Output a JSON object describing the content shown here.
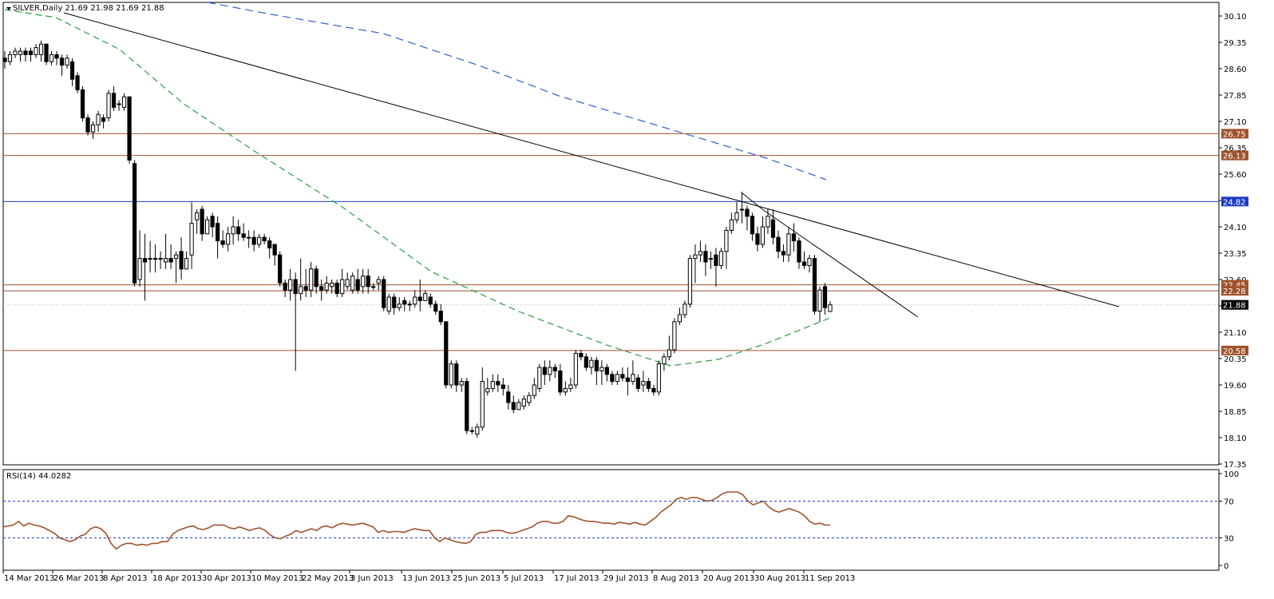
{
  "chart_data": [
    {
      "type": "candlestick",
      "symbol": "SILVER",
      "timeframe": "Daily",
      "header_label": "SILVER,Daily  21.69 21.98 21.69 21.88",
      "last_ohlc": {
        "open": 21.69,
        "high": 21.98,
        "low": 21.69,
        "close": 21.88
      },
      "ylim": [
        17.35,
        30.1
      ],
      "yticks": [
        "30.10",
        "29.35",
        "28.60",
        "27.85",
        "27.10",
        "26.35",
        "25.60",
        "24.85",
        "24.10",
        "23.35",
        "22.60",
        "21.85",
        "21.10",
        "20.35",
        "19.60",
        "18.85",
        "18.10",
        "17.35"
      ],
      "xticks": [
        "14 Mar 2013",
        "26 Mar 2013",
        "8 Apr 2013",
        "18 Apr 2013",
        "30 Apr 2013",
        "10 May 2013",
        "22 May 2013",
        "3 Jun 2013",
        "13 Jun 2013",
        "25 Jun 2013",
        "5 Jul 2013",
        "17 Jul 2013",
        "29 Jul 2013",
        "8 Aug 2013",
        "20 Aug 2013",
        "30 Aug 2013",
        "11 Sep 2013"
      ],
      "candles": [
        [
          28.9,
          28.8,
          29.1,
          28.6
        ],
        [
          28.8,
          29.0,
          29.1,
          28.7
        ],
        [
          29.0,
          29.1,
          29.2,
          28.9
        ],
        [
          29.0,
          29.1,
          29.2,
          28.8
        ],
        [
          29.1,
          29.0,
          29.2,
          28.8
        ],
        [
          29.1,
          29.0,
          29.2,
          28.8
        ],
        [
          29.0,
          29.2,
          29.3,
          28.9
        ],
        [
          29.0,
          29.3,
          29.4,
          28.8
        ],
        [
          29.3,
          28.8,
          29.3,
          28.7
        ],
        [
          28.8,
          29.0,
          29.1,
          28.7
        ],
        [
          29.0,
          28.9,
          29.1,
          28.7
        ],
        [
          28.9,
          28.7,
          29.0,
          28.4
        ],
        [
          28.7,
          28.9,
          29.0,
          28.6
        ],
        [
          28.8,
          28.3,
          28.9,
          28.1
        ],
        [
          28.4,
          28.0,
          28.5,
          27.9
        ],
        [
          28.0,
          27.2,
          28.1,
          27.1
        ],
        [
          27.2,
          26.8,
          27.3,
          26.7
        ],
        [
          26.8,
          27.0,
          27.1,
          26.6
        ],
        [
          27.0,
          27.3,
          27.4,
          26.8
        ],
        [
          27.2,
          27.1,
          27.3,
          26.9
        ],
        [
          27.2,
          27.9,
          28.0,
          27.1
        ],
        [
          27.9,
          27.5,
          28.1,
          27.4
        ],
        [
          27.6,
          27.6,
          27.7,
          27.4
        ],
        [
          27.5,
          27.8,
          27.9,
          27.4
        ],
        [
          27.8,
          26.0,
          27.8,
          25.9
        ],
        [
          25.9,
          22.5,
          26.0,
          22.4
        ],
        [
          22.6,
          23.2,
          24.0,
          22.4
        ],
        [
          23.2,
          23.1,
          23.9,
          22.0
        ],
        [
          23.2,
          23.2,
          23.7,
          22.8
        ],
        [
          23.2,
          23.2,
          23.6,
          22.8
        ],
        [
          23.2,
          23.2,
          23.4,
          22.9
        ],
        [
          23.1,
          23.2,
          23.9,
          22.9
        ],
        [
          23.2,
          23.1,
          23.6,
          22.9
        ],
        [
          23.2,
          23.3,
          23.4,
          22.5
        ],
        [
          23.4,
          22.9,
          23.8,
          22.6
        ],
        [
          22.9,
          23.2,
          23.4,
          22.9
        ],
        [
          23.3,
          24.2,
          24.8,
          22.9
        ],
        [
          24.3,
          24.5,
          24.6,
          23.9
        ],
        [
          24.6,
          23.9,
          24.7,
          23.7
        ],
        [
          23.9,
          24.3,
          24.4,
          24.0
        ],
        [
          24.4,
          24.1,
          24.5,
          23.8
        ],
        [
          24.2,
          23.7,
          24.4,
          23.2
        ],
        [
          23.7,
          23.6,
          24.0,
          23.5
        ],
        [
          23.6,
          23.9,
          24.1,
          23.4
        ],
        [
          23.9,
          24.1,
          24.4,
          23.6
        ],
        [
          24.1,
          23.9,
          24.3,
          23.7
        ],
        [
          23.9,
          23.8,
          24.2,
          23.7
        ],
        [
          23.8,
          23.8,
          24.0,
          23.5
        ],
        [
          23.8,
          23.6,
          24.0,
          23.4
        ],
        [
          23.6,
          23.8,
          23.9,
          23.5
        ],
        [
          23.8,
          23.7,
          23.9,
          23.6
        ],
        [
          23.7,
          23.5,
          23.8,
          23.2
        ],
        [
          23.6,
          23.3,
          23.5,
          23.0
        ],
        [
          23.3,
          22.5,
          23.4,
          22.4
        ],
        [
          22.5,
          22.3,
          22.6,
          22.1
        ],
        [
          22.3,
          22.6,
          22.9,
          22.0
        ],
        [
          22.6,
          22.2,
          22.8,
          20.0
        ],
        [
          22.2,
          22.4,
          23.2,
          22.0
        ],
        [
          22.4,
          22.3,
          22.9,
          22.1
        ],
        [
          22.3,
          22.9,
          23.1,
          22.1
        ],
        [
          22.9,
          22.4,
          23.0,
          22.2
        ],
        [
          22.4,
          22.3,
          22.6,
          22.0
        ],
        [
          22.3,
          22.5,
          22.7,
          22.2
        ],
        [
          22.4,
          22.5,
          22.6,
          22.2
        ],
        [
          22.5,
          22.2,
          22.6,
          22.1
        ],
        [
          22.2,
          22.6,
          22.9,
          22.1
        ],
        [
          22.4,
          22.6,
          22.8,
          22.3
        ],
        [
          22.3,
          22.7,
          22.8,
          22.2
        ],
        [
          22.6,
          22.3,
          22.9,
          22.2
        ],
        [
          22.4,
          22.7,
          22.9,
          22.2
        ],
        [
          22.7,
          22.4,
          22.9,
          22.2
        ],
        [
          22.4,
          22.4,
          22.5,
          22.3
        ],
        [
          22.5,
          22.6,
          22.7,
          22.3
        ],
        [
          22.6,
          21.8,
          22.7,
          21.7
        ],
        [
          21.7,
          22.1,
          22.2,
          21.6
        ],
        [
          22.1,
          21.8,
          22.2,
          21.6
        ],
        [
          21.8,
          21.9,
          22.1,
          21.7
        ],
        [
          22.0,
          21.9,
          22.1,
          21.7
        ],
        [
          21.9,
          21.9,
          22.0,
          21.7
        ],
        [
          21.9,
          22.1,
          22.3,
          21.8
        ],
        [
          22.1,
          22.0,
          22.6,
          21.7
        ],
        [
          22.0,
          22.2,
          22.3,
          22.0
        ],
        [
          22.1,
          21.9,
          22.2,
          21.8
        ],
        [
          21.9,
          21.7,
          22.0,
          21.6
        ],
        [
          21.7,
          21.4,
          21.9,
          21.3
        ],
        [
          21.4,
          19.6,
          21.4,
          19.5
        ],
        [
          19.6,
          20.2,
          20.3,
          19.5
        ],
        [
          20.2,
          19.6,
          20.3,
          19.4
        ],
        [
          19.6,
          19.7,
          19.8,
          19.4
        ],
        [
          19.7,
          18.3,
          19.8,
          18.2
        ],
        [
          18.3,
          18.3,
          18.4,
          18.2
        ],
        [
          18.2,
          18.4,
          18.5,
          18.1
        ],
        [
          18.4,
          19.7,
          20.1,
          18.3
        ],
        [
          19.4,
          19.5,
          19.8,
          19.3
        ],
        [
          19.5,
          19.7,
          19.9,
          19.4
        ],
        [
          19.7,
          19.6,
          19.9,
          19.4
        ],
        [
          19.6,
          19.5,
          19.8,
          19.3
        ],
        [
          19.4,
          19.1,
          19.6,
          18.9
        ],
        [
          19.1,
          18.9,
          19.3,
          18.8
        ],
        [
          18.9,
          19.1,
          19.2,
          18.9
        ],
        [
          19.0,
          19.2,
          19.3,
          18.9
        ],
        [
          19.1,
          19.3,
          19.4,
          19.0
        ],
        [
          19.3,
          19.6,
          19.8,
          19.2
        ],
        [
          19.5,
          20.1,
          20.2,
          19.4
        ],
        [
          20.1,
          19.9,
          20.3,
          19.6
        ],
        [
          19.9,
          20.1,
          20.3,
          19.7
        ],
        [
          20.1,
          20.0,
          20.2,
          19.8
        ],
        [
          20.0,
          19.4,
          20.2,
          19.3
        ],
        [
          19.4,
          19.5,
          19.7,
          19.3
        ],
        [
          19.5,
          19.6,
          19.8,
          19.4
        ],
        [
          19.6,
          20.5,
          20.6,
          19.5
        ],
        [
          20.5,
          20.4,
          20.6,
          20.3
        ],
        [
          20.4,
          20.1,
          20.5,
          20.0
        ],
        [
          20.1,
          20.3,
          20.4,
          19.9
        ],
        [
          20.3,
          20.0,
          20.4,
          19.6
        ],
        [
          20.0,
          20.1,
          20.3,
          19.6
        ],
        [
          20.1,
          19.9,
          20.2,
          19.7
        ],
        [
          19.9,
          19.7,
          20.0,
          19.6
        ],
        [
          19.7,
          19.9,
          20.0,
          19.6
        ],
        [
          19.9,
          19.8,
          20.1,
          19.7
        ],
        [
          19.8,
          19.7,
          20.1,
          19.3
        ],
        [
          19.7,
          19.9,
          20.3,
          19.6
        ],
        [
          19.8,
          19.5,
          19.9,
          19.4
        ],
        [
          19.6,
          19.7,
          20.0,
          19.4
        ],
        [
          19.7,
          19.5,
          19.8,
          19.4
        ],
        [
          19.5,
          19.4,
          19.6,
          19.3
        ],
        [
          19.4,
          20.2,
          20.3,
          19.3
        ],
        [
          20.2,
          20.4,
          20.5,
          20.0
        ],
        [
          20.4,
          20.6,
          21.0,
          20.3
        ],
        [
          20.6,
          21.4,
          21.5,
          20.5
        ],
        [
          21.4,
          21.6,
          21.8,
          21.3
        ],
        [
          21.6,
          21.9,
          22.0,
          21.5
        ],
        [
          21.9,
          23.2,
          23.3,
          21.8
        ],
        [
          23.2,
          23.3,
          23.6,
          22.5
        ],
        [
          23.3,
          23.4,
          23.7,
          23.1
        ],
        [
          23.4,
          23.1,
          23.6,
          22.7
        ],
        [
          23.2,
          23.2,
          23.4,
          22.9
        ],
        [
          23.3,
          23.0,
          23.5,
          22.4
        ],
        [
          23.0,
          23.4,
          23.5,
          22.9
        ],
        [
          23.4,
          24.0,
          24.1,
          22.9
        ],
        [
          24.0,
          24.3,
          24.5,
          23.9
        ],
        [
          24.3,
          24.5,
          24.8,
          24.2
        ],
        [
          24.6,
          24.6,
          25.1,
          24.2
        ],
        [
          24.6,
          24.4,
          24.7,
          24.0
        ],
        [
          24.4,
          23.9,
          24.5,
          23.7
        ],
        [
          23.9,
          23.6,
          24.1,
          23.4
        ],
        [
          23.6,
          24.1,
          24.4,
          23.5
        ],
        [
          24.1,
          24.4,
          24.6,
          23.9
        ],
        [
          24.3,
          23.8,
          24.6,
          23.6
        ],
        [
          23.8,
          23.4,
          24.0,
          23.2
        ],
        [
          23.4,
          23.3,
          23.6,
          23.1
        ],
        [
          23.3,
          23.9,
          24.1,
          23.1
        ],
        [
          23.9,
          23.7,
          24.2,
          23.4
        ],
        [
          23.7,
          23.1,
          23.8,
          22.9
        ],
        [
          23.1,
          23.0,
          23.4,
          22.9
        ],
        [
          23.0,
          23.2,
          23.3,
          22.8
        ],
        [
          23.2,
          21.7,
          23.3,
          21.6
        ],
        [
          21.7,
          22.3,
          22.4,
          21.4
        ],
        [
          22.4,
          21.8,
          22.5,
          21.6
        ],
        [
          21.69,
          21.88,
          21.98,
          21.69
        ]
      ],
      "overlays": {
        "sma_dashed_green": [
          30.1,
          29.5,
          28.3,
          23.5,
          22.5,
          20.6,
          20.5,
          21.0
        ],
        "sma_dashed_blue": [
          30.1,
          28.6,
          25.6
        ],
        "trendline_major": {
          "from": [
            26.3,
            30.1
          ],
          "to": [
            21.85,
            29.9
          ]
        },
        "trendline_minor": {
          "from": [
            24.8,
            0
          ],
          "to": [
            21.2,
            0
          ]
        }
      },
      "horizontal_levels": [
        {
          "value": 26.75,
          "label": "26.75",
          "color": "#a0522d",
          "tag": "brown"
        },
        {
          "value": 26.13,
          "label": "26.13",
          "color": "#a0522d",
          "tag": "brown"
        },
        {
          "value": 24.82,
          "label": "24.82",
          "color": "#1e3cc8",
          "tag": "blue"
        },
        {
          "value": 22.45,
          "label": "22.45",
          "color": "#a0522d",
          "tag": "brown"
        },
        {
          "value": 22.28,
          "label": "22.28",
          "color": "#a0522d",
          "tag": "brown"
        },
        {
          "value": 20.58,
          "label": "20.58",
          "color": "#a0522d",
          "tag": "brown"
        }
      ],
      "current_price": {
        "value": 21.88,
        "label": "21.88"
      }
    },
    {
      "type": "line",
      "indicator_label": "RSI(14) 44.0282",
      "ylim": [
        0,
        100
      ],
      "yticks": [
        "100",
        "70",
        "30",
        "0"
      ],
      "levels": [
        70,
        30
      ],
      "series": [
        {
          "name": "RSI(14)",
          "color": "#a0522d",
          "values": [
            42,
            43,
            44,
            48,
            43,
            46,
            44,
            43,
            41,
            38,
            35,
            30,
            28,
            26,
            28,
            32,
            34,
            40,
            42,
            40,
            35,
            24,
            18,
            22,
            24,
            24,
            22,
            23,
            22,
            24,
            24,
            26,
            26,
            34,
            38,
            40,
            42,
            43,
            40,
            39,
            41,
            44,
            44,
            44,
            41,
            40,
            42,
            40,
            38,
            40,
            41,
            38,
            33,
            30,
            29,
            32,
            34,
            38,
            36,
            38,
            40,
            38,
            42,
            43,
            41,
            44,
            46,
            45,
            44,
            45,
            46,
            44,
            42,
            36,
            38,
            36,
            37,
            37,
            36,
            38,
            40,
            39,
            38,
            38,
            30,
            26,
            30,
            28,
            26,
            25,
            24,
            26,
            34,
            36,
            36,
            38,
            38,
            38,
            36,
            35,
            36,
            38,
            40,
            42,
            46,
            48,
            48,
            46,
            46,
            48,
            54,
            53,
            51,
            49,
            48,
            48,
            47,
            46,
            46,
            45,
            47,
            46,
            45,
            47,
            45,
            44,
            48,
            52,
            58,
            62,
            66,
            72,
            74,
            72,
            74,
            74,
            72,
            70,
            71,
            74,
            78,
            80,
            80,
            80,
            77,
            70,
            66,
            68,
            70,
            64,
            60,
            58,
            60,
            62,
            60,
            58,
            54,
            48,
            45,
            46,
            44,
            44.0282
          ]
        }
      ]
    }
  ],
  "colors": {
    "bull": "#ffffff",
    "bear": "#000000",
    "green_ma": "#2e9c44",
    "blue_ma": "#2f5fd0",
    "level_brown": "#a0522d",
    "level_blue": "#1e3cc8",
    "rsi": "#a0522d"
  }
}
